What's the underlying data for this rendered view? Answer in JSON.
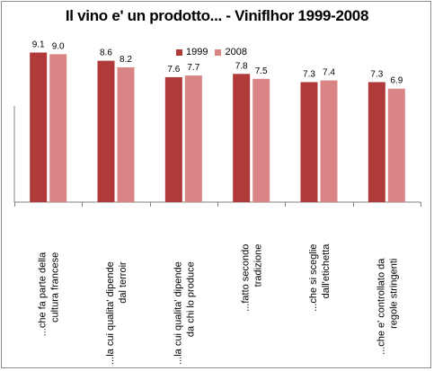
{
  "colors": {
    "series_1999": "#b03a3a",
    "series_2008": "#d98585",
    "axis": "#808080",
    "frame": "#8c8c8c"
  },
  "chart_data": {
    "type": "bar",
    "title": "Il vino e' un prodotto... - Viniflhor 1999-2008",
    "xlabel": "",
    "ylabel": "",
    "legend_placement": "top",
    "grid": false,
    "ylim": [
      0,
      10
    ],
    "categories": [
      [
        "...che fa parte della",
        "cultura francese"
      ],
      [
        "...la cui qualita' dipende",
        "dal terroir"
      ],
      [
        "...la cui qualita' dipende",
        "da chi lo produce"
      ],
      [
        "...fatto secondo",
        "tradizione"
      ],
      [
        "...che si sceglie",
        "dall'etichetta"
      ],
      [
        "...che e' controllato da",
        "regole stringenti"
      ]
    ],
    "series": [
      {
        "name": "1999",
        "values": [
          9.1,
          8.6,
          7.6,
          7.8,
          7.3,
          7.3
        ]
      },
      {
        "name": "2008",
        "values": [
          9.0,
          8.2,
          7.7,
          7.5,
          7.4,
          6.9
        ]
      }
    ]
  }
}
